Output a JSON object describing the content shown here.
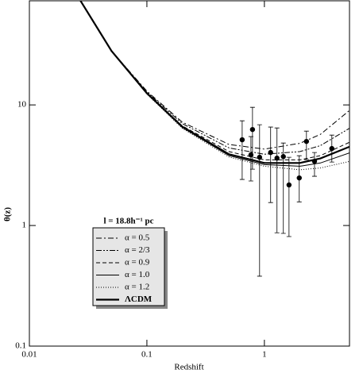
{
  "chart_data": {
    "type": "line",
    "xlabel": "Redshift",
    "ylabel": "θ(z)",
    "xscale": "log",
    "yscale": "log",
    "xlim": [
      0.01,
      5.3
    ],
    "ylim": [
      0.1,
      73
    ],
    "xticks": [
      0.01,
      0.1,
      1
    ],
    "yticks": [
      0.1,
      1,
      10
    ],
    "legend_title": "l = 18.8h⁻¹ pc",
    "curve_x": [
      0.027,
      0.05,
      0.1,
      0.2,
      0.5,
      1,
      2,
      3,
      5.3
    ],
    "series": [
      {
        "name": "α = 0.5",
        "color": "#000000",
        "dash": "7,3,2,3",
        "width": 1,
        "values": [
          74,
          28,
          13,
          7.2,
          4.7,
          4.3,
          4.8,
          5.7,
          9.0
        ]
      },
      {
        "name": "α = 2/3",
        "color": "#000000",
        "dash": "7,2,2,2,2,2",
        "width": 1,
        "values": [
          74,
          28,
          12.8,
          7.0,
          4.4,
          3.9,
          4.1,
          4.6,
          6.4
        ]
      },
      {
        "name": "α = 0.9",
        "color": "#000000",
        "dash": "5,3",
        "width": 1,
        "values": [
          74,
          28,
          12.6,
          6.7,
          4.1,
          3.5,
          3.5,
          3.8,
          4.9
        ]
      },
      {
        "name": "α = 1.0",
        "color": "#000000",
        "dash": "none",
        "width": 1,
        "values": [
          74,
          28,
          12.4,
          6.5,
          3.8,
          3.2,
          3.1,
          3.3,
          4.0
        ]
      },
      {
        "name": "α = 1.2",
        "color": "#000000",
        "dash": "1,2",
        "width": 1,
        "values": [
          74,
          28,
          12.3,
          6.4,
          3.7,
          3.1,
          2.9,
          3.0,
          3.4
        ]
      },
      {
        "name": "ΛCDM",
        "color": "#000000",
        "dash": "none",
        "width": 2.2,
        "values": [
          74,
          28,
          12.5,
          6.6,
          3.9,
          3.3,
          3.3,
          3.6,
          4.5
        ]
      }
    ],
    "points": {
      "color": "#000000",
      "x": [
        0.647,
        0.768,
        0.792,
        0.91,
        1.13,
        1.28,
        1.45,
        1.62,
        1.98,
        2.28,
        2.67,
        3.75
      ],
      "values": [
        5.14,
        3.85,
        6.25,
        3.68,
        4.03,
        3.62,
        3.73,
        2.17,
        2.48,
        4.98,
        3.41,
        4.35
      ],
      "y_low": [
        2.41,
        2.34,
        2.93,
        0.38,
        1.55,
        0.87,
        0.86,
        0.81,
        1.57,
        3.52,
        2.56,
        3.36
      ],
      "y_high": [
        7.38,
        5.46,
        9.55,
        6.85,
        6.55,
        6.44,
        4.83,
        3.68,
        3.79,
        6.06,
        4.03,
        5.62
      ]
    }
  }
}
